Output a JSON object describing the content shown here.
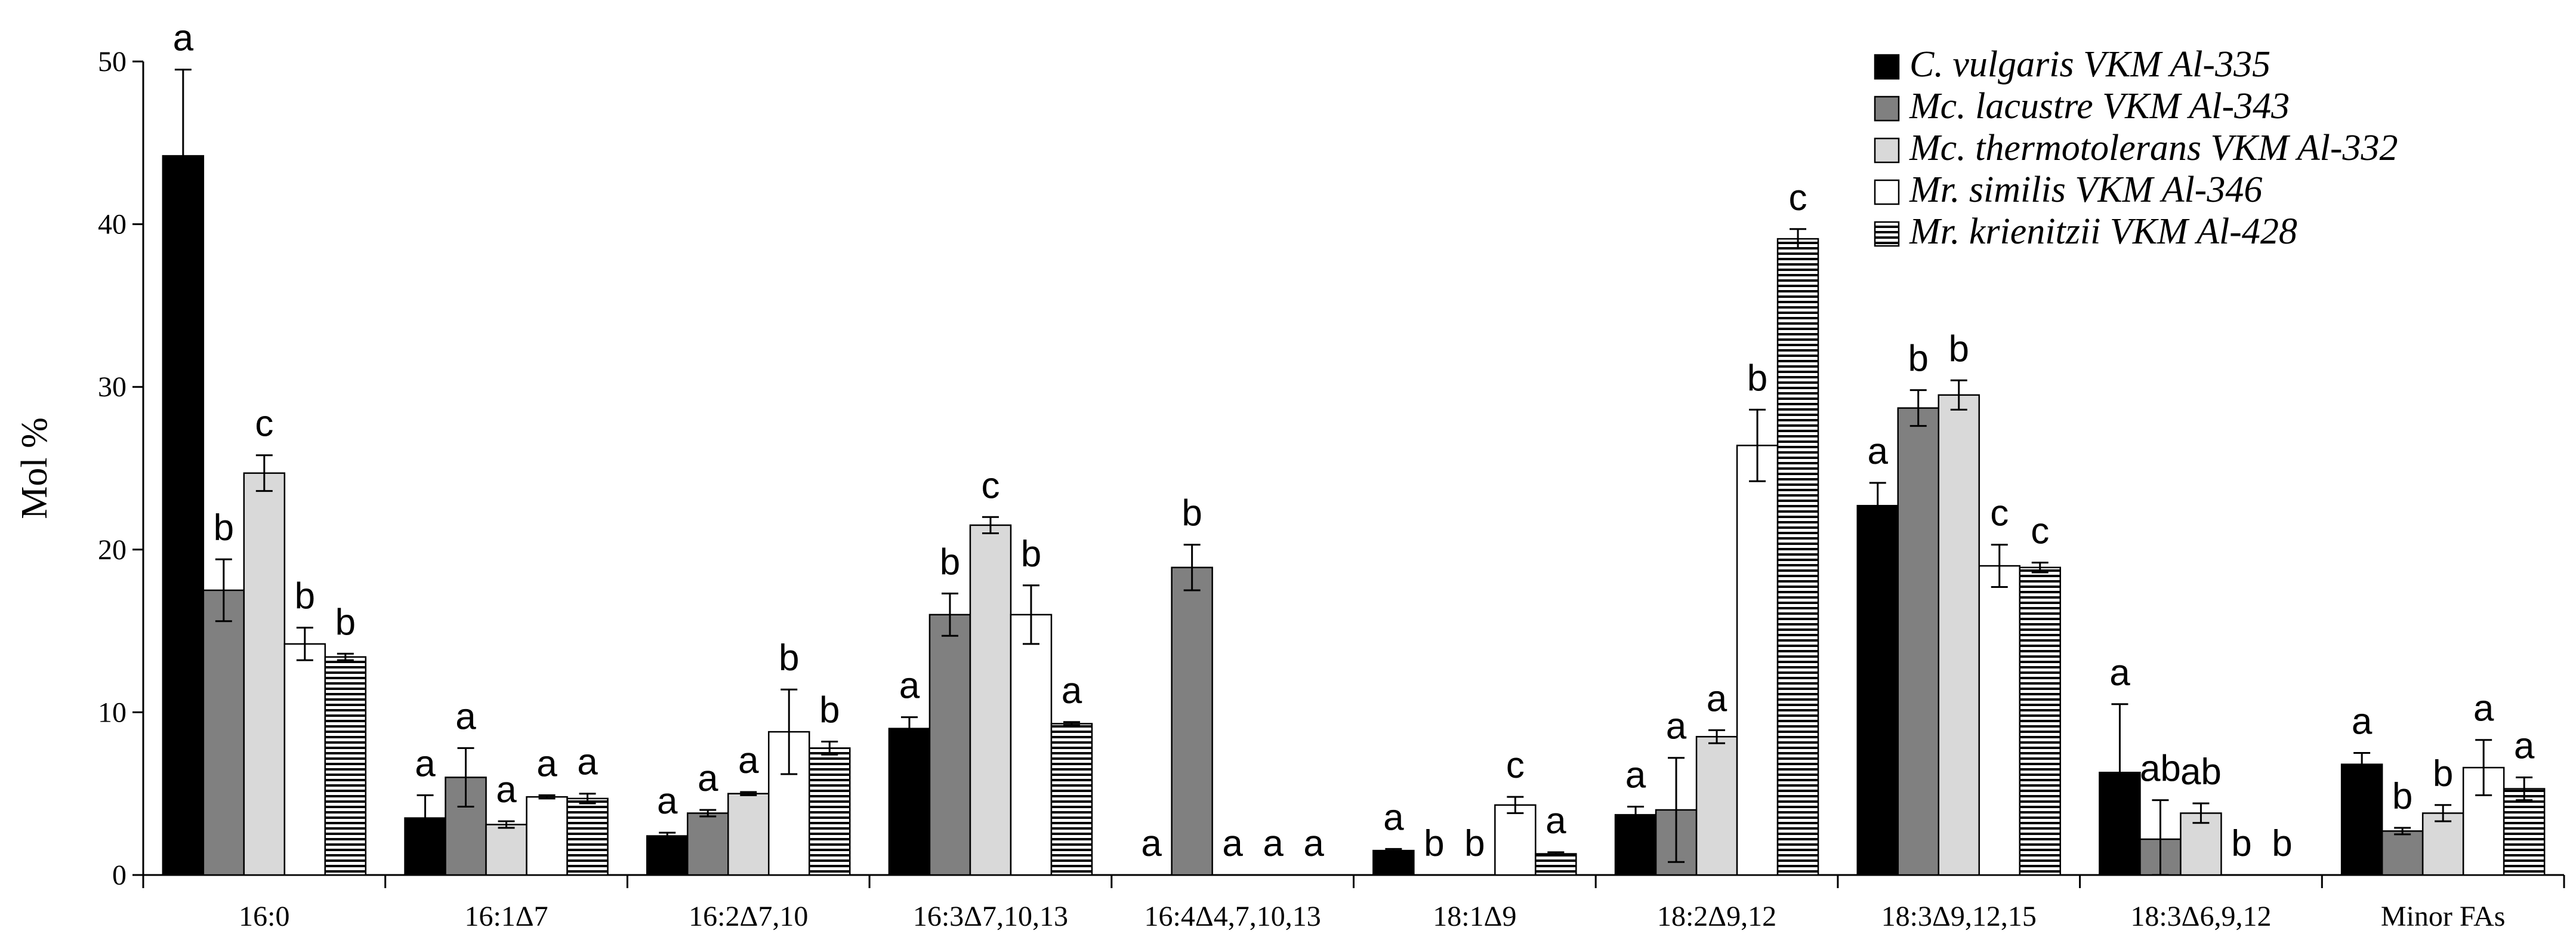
{
  "chart_data": {
    "type": "bar",
    "ylabel": "Mol %",
    "xlabel": "",
    "ylim": [
      0,
      50
    ],
    "yticks": [
      0,
      10,
      20,
      30,
      40,
      50
    ],
    "grid": false,
    "legend_position": "top-right",
    "categories": [
      "16:0",
      "16:1Δ7",
      "16:2Δ7,10",
      "16:3Δ7,10,13",
      "16:4Δ4,7,10,13",
      "18:1Δ9",
      "18:2Δ9,12",
      "18:3Δ9,12,15",
      "18:3Δ6,9,12",
      "Minor FAs"
    ],
    "series": [
      {
        "name": "C. vulgaris VKM Al-335",
        "fill": "#000000",
        "pattern": "solid",
        "values": [
          44.2,
          3.5,
          2.4,
          9.0,
          0,
          1.5,
          3.7,
          22.7,
          6.3,
          6.8
        ],
        "errors": [
          5.3,
          1.4,
          0.2,
          0.7,
          0,
          0.1,
          0.5,
          1.4,
          4.2,
          0.7
        ],
        "sig": [
          "a",
          "a",
          "a",
          "a",
          "a",
          "a",
          "a",
          "a",
          "a",
          "a"
        ]
      },
      {
        "name": "Mc. lacustre VKM Al-343",
        "fill": "#808080",
        "pattern": "solid",
        "values": [
          17.5,
          6.0,
          3.8,
          16.0,
          18.9,
          0,
          4.0,
          28.7,
          2.2,
          2.7
        ],
        "errors": [
          1.9,
          1.8,
          0.2,
          1.3,
          1.4,
          0,
          3.2,
          1.1,
          2.4,
          0.2
        ],
        "sig": [
          "b",
          "a",
          "a",
          "b",
          "b",
          "b",
          "a",
          "b",
          "ab",
          "b"
        ]
      },
      {
        "name": "Mc. thermotolerans VKM Al-332",
        "fill": "#d9d9d9",
        "pattern": "solid",
        "values": [
          24.7,
          3.1,
          5.0,
          21.5,
          0,
          0,
          8.5,
          29.5,
          3.8,
          3.8
        ],
        "errors": [
          1.1,
          0.2,
          0.1,
          0.5,
          0,
          0,
          0.4,
          0.9,
          0.6,
          0.5
        ],
        "sig": [
          "c",
          "a",
          "a",
          "c",
          "a",
          "b",
          "a",
          "b",
          "ab",
          "b"
        ]
      },
      {
        "name": "Mr. similis VKM Al-346",
        "fill": "#ffffff",
        "pattern": "solid",
        "values": [
          14.2,
          4.8,
          8.8,
          16.0,
          0,
          4.3,
          26.4,
          19.0,
          0,
          6.6
        ],
        "errors": [
          1.0,
          0.1,
          2.6,
          1.8,
          0,
          0.5,
          2.2,
          1.3,
          0,
          1.7
        ],
        "sig": [
          "b",
          "a",
          "b",
          "b",
          "a",
          "c",
          "b",
          "c",
          "b",
          "a"
        ]
      },
      {
        "name": "Mr. krienitzii VKM Al-428",
        "fill": "#ffffff",
        "pattern": "horizontal-stripes",
        "values": [
          13.4,
          4.7,
          7.8,
          9.3,
          0,
          1.3,
          39.1,
          18.9,
          0,
          5.3
        ],
        "errors": [
          0.2,
          0.3,
          0.4,
          0.1,
          0,
          0.1,
          0.6,
          0.3,
          0,
          0.7
        ],
        "sig": [
          "b",
          "a",
          "b",
          "a",
          "a",
          "a",
          "c",
          "c",
          "b",
          "a"
        ]
      }
    ]
  }
}
